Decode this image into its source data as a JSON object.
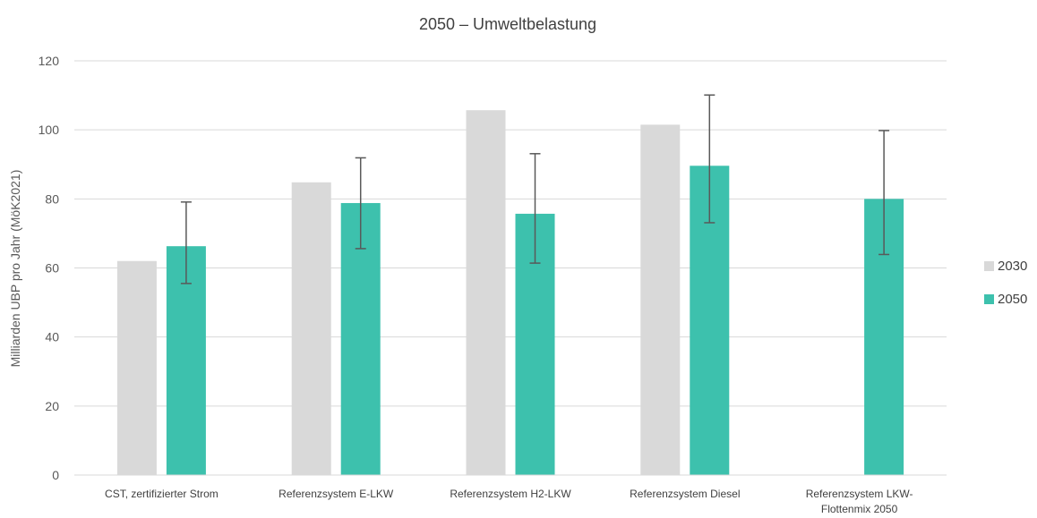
{
  "chart_data": {
    "type": "bar",
    "title": "2050 – Umweltbelastung",
    "xlabel": "",
    "ylabel": "Milliarden UBP pro Jahr (MöK2021)",
    "ylim": [
      0,
      120
    ],
    "yticks": [
      0,
      20,
      40,
      60,
      80,
      100,
      120
    ],
    "grid": true,
    "legend_position": "right",
    "categories": [
      [
        "CST, zertifizierter Strom"
      ],
      [
        "Referenzsystem E-LKW"
      ],
      [
        "Referenzsystem H2-LKW"
      ],
      [
        "Referenzsystem Diesel"
      ],
      [
        "Referenzsystem LKW-",
        "Flottenmix 2050"
      ]
    ],
    "series": [
      {
        "name": "2030",
        "color": "#d9d9d9",
        "values": [
          62,
          84.8,
          105.7,
          101.5,
          null
        ],
        "error_low": [
          null,
          null,
          null,
          null,
          null
        ],
        "error_high": [
          null,
          null,
          null,
          null,
          null
        ]
      },
      {
        "name": "2050",
        "color": "#3dc1ad",
        "values": [
          66.3,
          78.8,
          75.7,
          89.6,
          80
        ],
        "error_low": [
          55.5,
          65.6,
          61.4,
          73.1,
          63.9
        ],
        "error_high": [
          79.1,
          91.9,
          93.1,
          110.1,
          99.8
        ]
      }
    ]
  }
}
